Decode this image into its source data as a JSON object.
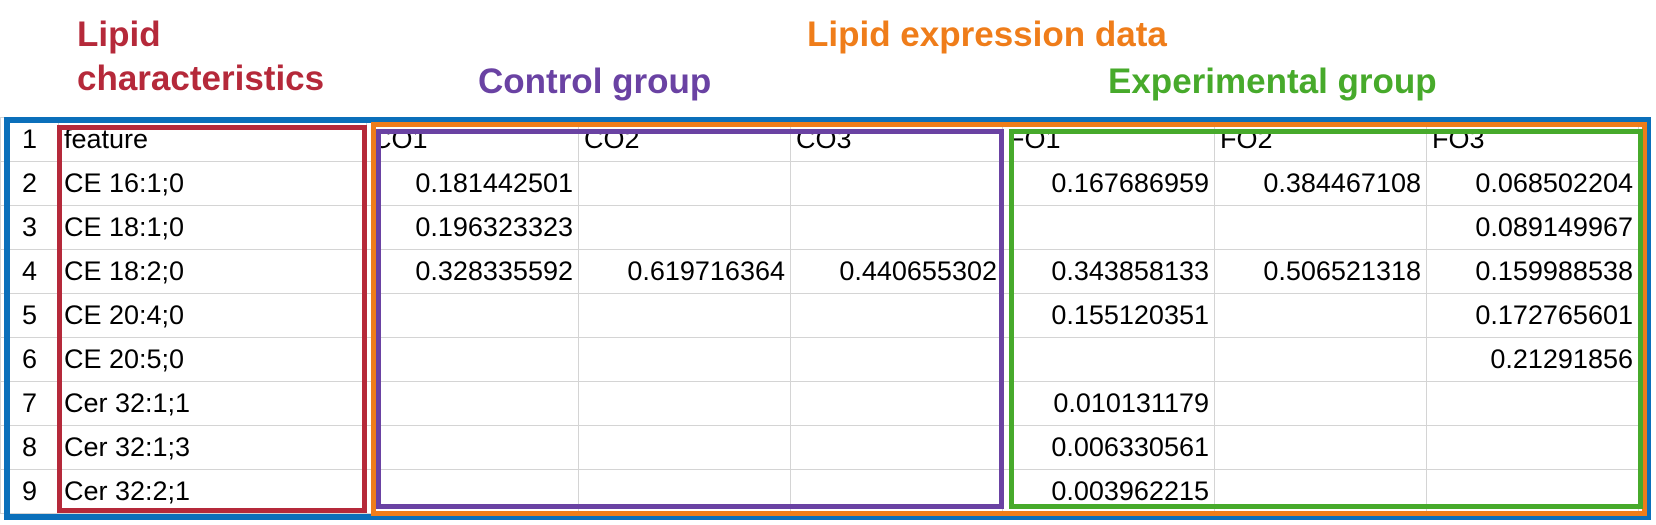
{
  "labels": {
    "lipid_characteristics": "Lipid\ncharacteristics",
    "lipid_expression_data": "Lipid expression data",
    "control_group": "Control group",
    "experimental_group": "Experimental group"
  },
  "colors": {
    "outer_frame": "#0b6fba",
    "lipid_characteristics": "#b5293a",
    "lipid_expression_data": "#ef7d1a",
    "control_group": "#6a42a3",
    "experimental_group": "#47aa2b"
  },
  "table": {
    "columns": [
      "feature",
      "CO1",
      "CO2",
      "CO3",
      "FO1",
      "FO2",
      "FO3"
    ],
    "rows": [
      {
        "n": "2",
        "cells": [
          "CE 16:1;0",
          "0.181442501",
          "",
          "",
          "0.167686959",
          "0.384467108",
          "0.068502204"
        ]
      },
      {
        "n": "3",
        "cells": [
          "CE 18:1;0",
          "0.196323323",
          "",
          "",
          "",
          "",
          "0.089149967"
        ]
      },
      {
        "n": "4",
        "cells": [
          "CE 18:2;0",
          "0.328335592",
          "0.619716364",
          "0.440655302",
          "0.343858133",
          "0.506521318",
          "0.159988538"
        ]
      },
      {
        "n": "5",
        "cells": [
          "CE 20:4;0",
          "",
          "",
          "",
          "0.155120351",
          "",
          "0.172765601"
        ]
      },
      {
        "n": "6",
        "cells": [
          "CE 20:5;0",
          "",
          "",
          "",
          "",
          "",
          "0.21291856"
        ]
      },
      {
        "n": "7",
        "cells": [
          "Cer 32:1;1",
          "",
          "",
          "",
          "0.010131179",
          "",
          ""
        ]
      },
      {
        "n": "8",
        "cells": [
          "Cer 32:1;3",
          "",
          "",
          "",
          "0.006330561",
          "",
          ""
        ]
      },
      {
        "n": "9",
        "cells": [
          "Cer 32:2;1",
          "",
          "",
          "",
          "0.003962215",
          "",
          ""
        ]
      }
    ]
  }
}
